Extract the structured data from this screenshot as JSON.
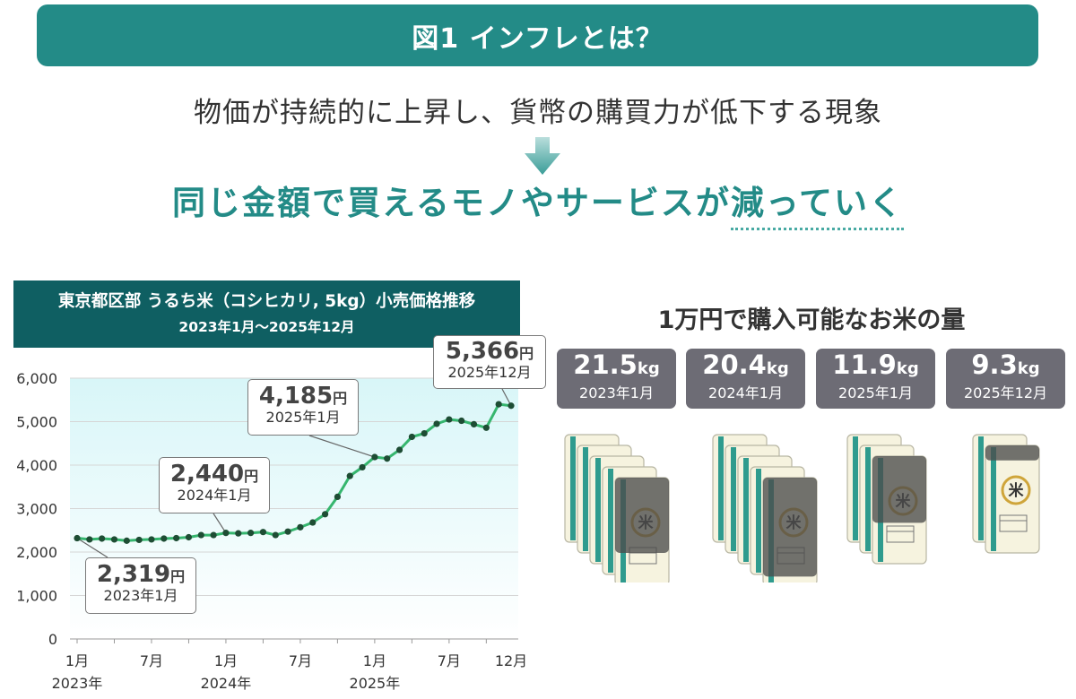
{
  "header": {
    "title": "図1 インフレとは？"
  },
  "definition": "物価が持続的に上昇し、貨幣の購買力が低下する現象",
  "conclusion": {
    "main": "同じ金額で買えるモノやサービスが",
    "emphasis": "減っていく"
  },
  "chart_data": {
    "type": "line",
    "title": "東京都区部 うるち米（コシヒカリ, 5kg）小売価格推移",
    "subtitle": "2023年1月～2025年12月",
    "ylim": [
      0,
      6000
    ],
    "y_ticks": [
      "0",
      "1,000",
      "2,000",
      "3,000",
      "4,000",
      "5,000",
      "6,000"
    ],
    "x_tick_labels": [
      "1月",
      "7月",
      "1月",
      "7月",
      "1月",
      "7月",
      "12月"
    ],
    "year_labels": [
      "2023年",
      "2024年",
      "2025年"
    ],
    "x": [
      "2023-01",
      "2023-02",
      "2023-03",
      "2023-04",
      "2023-05",
      "2023-06",
      "2023-07",
      "2023-08",
      "2023-09",
      "2023-10",
      "2023-11",
      "2023-12",
      "2024-01",
      "2024-02",
      "2024-03",
      "2024-04",
      "2024-05",
      "2024-06",
      "2024-07",
      "2024-08",
      "2024-09",
      "2024-10",
      "2024-11",
      "2024-12",
      "2025-01",
      "2025-02",
      "2025-03",
      "2025-04",
      "2025-05",
      "2025-06",
      "2025-07",
      "2025-08",
      "2025-09",
      "2025-10",
      "2025-11",
      "2025-12"
    ],
    "values": [
      2319,
      2290,
      2310,
      2290,
      2260,
      2280,
      2290,
      2310,
      2320,
      2340,
      2390,
      2390,
      2440,
      2430,
      2440,
      2460,
      2390,
      2470,
      2570,
      2680,
      2870,
      3270,
      3750,
      3950,
      4185,
      4150,
      4350,
      4650,
      4730,
      4950,
      5050,
      5020,
      4940,
      4860,
      5400,
      5366
    ],
    "annotations": [
      {
        "value": "2,319",
        "unit": "円",
        "date": "2023年1月"
      },
      {
        "value": "2,440",
        "unit": "円",
        "date": "2024年1月"
      },
      {
        "value": "4,185",
        "unit": "円",
        "date": "2025年1月"
      },
      {
        "value": "5,366",
        "unit": "円",
        "date": "2025年12月"
      }
    ],
    "colors": {
      "line": "#36b66e",
      "marker": "#1e4d34",
      "plot_bg_top": "#d8f6f8",
      "plot_bg_bottom": "#ffffff"
    },
    "grid": true
  },
  "rice": {
    "title": "1万円で購入可能なお米の量",
    "bag_label": "米",
    "items": [
      {
        "amount": "21.5",
        "unit": "kg",
        "date": "2023年1月",
        "bags": 4.3
      },
      {
        "amount": "20.4",
        "unit": "kg",
        "date": "2024年1月",
        "bags": 4.08
      },
      {
        "amount": "11.9",
        "unit": "kg",
        "date": "2025年1月",
        "bags": 2.38
      },
      {
        "amount": "9.3",
        "unit": "kg",
        "date": "2025年12月",
        "bags": 1.86
      }
    ]
  },
  "icons": [
    "down-arrow-icon",
    "rice-bag-icon"
  ]
}
